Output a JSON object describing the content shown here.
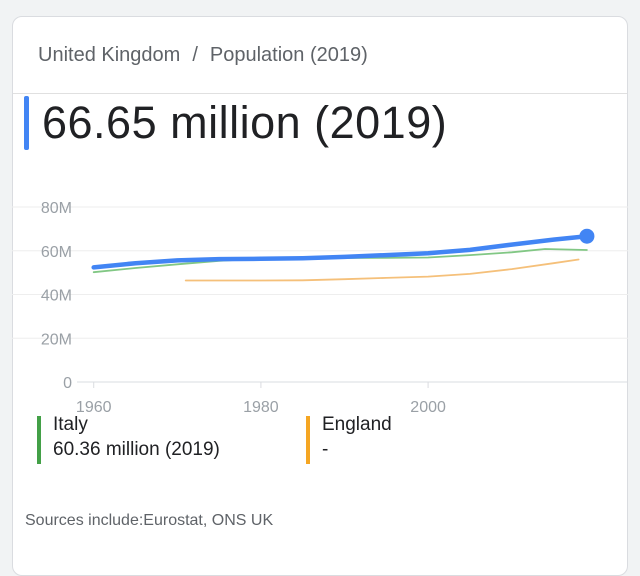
{
  "breadcrumb": {
    "country": "United Kingdom",
    "separator": "/",
    "metric": "Population (2019)"
  },
  "headline": {
    "value": "66.65 million (2019)",
    "accent": "#4285f4"
  },
  "legend": [
    {
      "name": "Italy",
      "value": "60.36 million (2019)",
      "color": "#43a047"
    },
    {
      "name": "England",
      "value": "-",
      "color": "#f5a623"
    }
  ],
  "sources": "Sources include:Eurostat, ONS UK",
  "chart_data": {
    "type": "line",
    "title": "",
    "xlabel": "",
    "ylabel": "",
    "x_ticks": [
      1960,
      1980,
      2000
    ],
    "y_ticks": [
      "0",
      "20M",
      "40M",
      "60M",
      "80M"
    ],
    "y_tick_values": [
      0,
      20,
      40,
      60,
      80
    ],
    "xlim": [
      1958,
      2022
    ],
    "ylim": [
      0,
      80
    ],
    "grid": true,
    "series": [
      {
        "key": "uk",
        "color": "#4285f4",
        "emphasis": true,
        "endpoint": true,
        "x": [
          1960,
          1965,
          1970,
          1975,
          1980,
          1985,
          1990,
          1995,
          2000,
          2005,
          2010,
          2015,
          2019
        ],
        "values": [
          52.4,
          54.3,
          55.6,
          56.2,
          56.3,
          56.6,
          57.2,
          58.0,
          58.9,
          60.4,
          62.8,
          65.1,
          66.65
        ]
      },
      {
        "key": "italy",
        "name": "Italy",
        "color": "#81c784",
        "x": [
          1960,
          1965,
          1970,
          1975,
          1980,
          1985,
          1990,
          1995,
          2000,
          2005,
          2010,
          2014,
          2019
        ],
        "values": [
          50.2,
          52.1,
          53.8,
          55.4,
          56.4,
          56.6,
          56.7,
          56.8,
          56.9,
          58.0,
          59.3,
          60.8,
          60.36
        ]
      },
      {
        "key": "england",
        "name": "England",
        "color": "#f5c07a",
        "x": [
          1971,
          1975,
          1980,
          1985,
          1990,
          1995,
          2000,
          2005,
          2010,
          2015,
          2018
        ],
        "values": [
          46.4,
          46.4,
          46.4,
          46.5,
          47.0,
          47.6,
          48.2,
          49.4,
          51.6,
          54.3,
          56.0
        ]
      }
    ]
  }
}
